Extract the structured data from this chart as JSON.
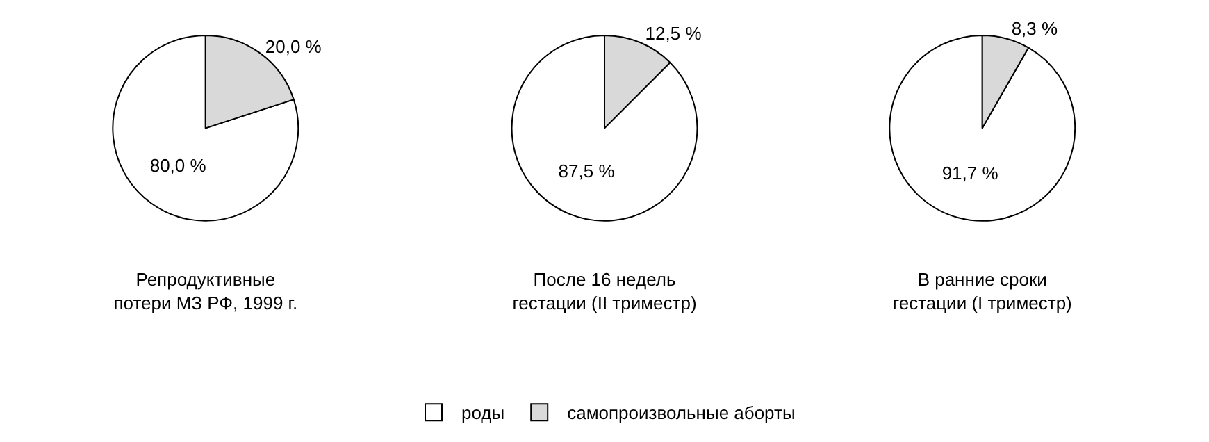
{
  "chart_data": [
    {
      "type": "pie",
      "title": "Репродуктивные\nпотери МЗ РФ, 1999 г.",
      "categories": [
        "роды",
        "самопроизвольные аборты"
      ],
      "values": [
        80.0,
        20.0
      ],
      "value_labels": [
        "80,0 %",
        "20,0 %"
      ],
      "colors": [
        "#ffffff",
        "#d9d9d9"
      ],
      "legend": "bottom"
    },
    {
      "type": "pie",
      "title": "После 16 недель\nгестации (II триместр)",
      "values": [
        87.5,
        12.5
      ],
      "value_labels": [
        "87,5 %",
        "12,5 %"
      ],
      "colors": [
        "#ffffff",
        "#d9d9d9"
      ]
    },
    {
      "type": "pie",
      "title": "В ранние сроки\nгестации (I триместр)",
      "values": [
        91.7,
        8.3
      ],
      "value_labels": [
        "91,7 %",
        "8,3 %"
      ],
      "colors": [
        "#ffffff",
        "#d9d9d9"
      ]
    }
  ]
}
